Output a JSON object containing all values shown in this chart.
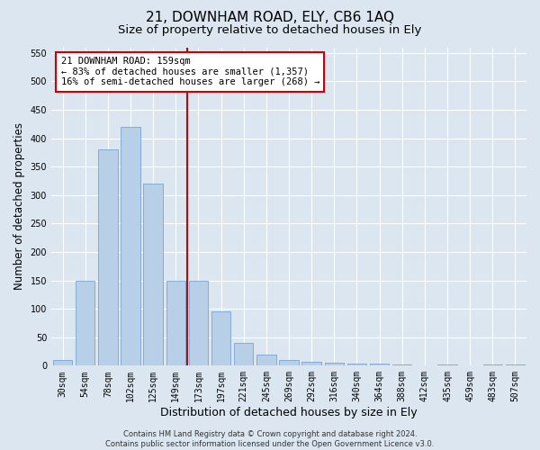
{
  "title_line1": "21, DOWNHAM ROAD, ELY, CB6 1AQ",
  "title_line2": "Size of property relative to detached houses in Ely",
  "xlabel": "Distribution of detached houses by size in Ely",
  "ylabel": "Number of detached properties",
  "footnote": "Contains HM Land Registry data © Crown copyright and database right 2024.\nContains public sector information licensed under the Open Government Licence v3.0.",
  "categories": [
    "30sqm",
    "54sqm",
    "78sqm",
    "102sqm",
    "125sqm",
    "149sqm",
    "173sqm",
    "197sqm",
    "221sqm",
    "245sqm",
    "269sqm",
    "292sqm",
    "316sqm",
    "340sqm",
    "364sqm",
    "388sqm",
    "412sqm",
    "435sqm",
    "459sqm",
    "483sqm",
    "507sqm"
  ],
  "values": [
    10,
    150,
    380,
    420,
    320,
    150,
    150,
    95,
    40,
    20,
    10,
    7,
    5,
    4,
    3,
    2,
    1,
    2,
    1,
    2,
    2
  ],
  "bar_color": "#b8cfe8",
  "bar_edge_color": "#6699cc",
  "vline_x_index": 5,
  "vline_color": "#cc0000",
  "annotation_text": "21 DOWNHAM ROAD: 159sqm\n← 83% of detached houses are smaller (1,357)\n16% of semi-detached houses are larger (268) →",
  "annotation_box_color": "#ffffff",
  "annotation_box_edge": "#cc0000",
  "ylim": [
    0,
    560
  ],
  "yticks": [
    0,
    50,
    100,
    150,
    200,
    250,
    300,
    350,
    400,
    450,
    500,
    550
  ],
  "background_color": "#dce6f0",
  "plot_background": "#dce6f0",
  "grid_color": "#ffffff",
  "title_fontsize": 11,
  "subtitle_fontsize": 9.5,
  "tick_fontsize": 7,
  "ylabel_fontsize": 8.5,
  "xlabel_fontsize": 9,
  "footnote_fontsize": 6
}
